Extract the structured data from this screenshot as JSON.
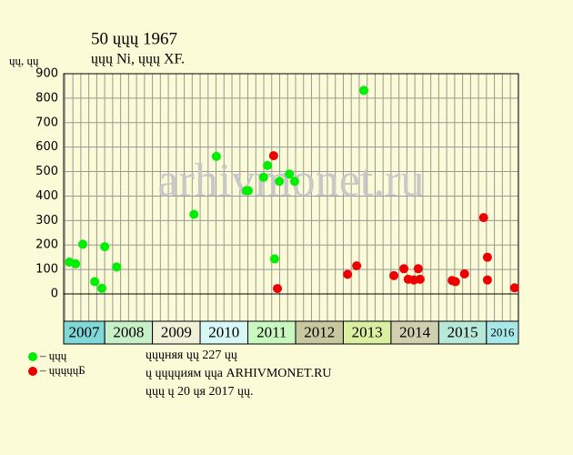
{
  "chart_data": {
    "type": "scatter",
    "title": "50 ųųų 1967",
    "subtitle": "ųųų Ni, ųųų XF.",
    "y_label": "ųų, ųų",
    "watermark": "arhivmonet.ru",
    "xlim": [
      2007.14,
      2016.67
    ],
    "xticks": [
      2007,
      2008,
      2009,
      2010,
      2011,
      2012,
      2013,
      2014,
      2015,
      2016
    ],
    "band_colors": [
      "#80d8d8",
      "#c8f0c8",
      "#f0f0d8",
      "#d8f8f8",
      "#c8f8c0",
      "#c8c8a0",
      "#d8f0a0",
      "#d0d0b0",
      "#b8e8d8",
      "#a8e8e8"
    ],
    "ylim": [
      0,
      900
    ],
    "yticks": [
      0,
      100,
      200,
      300,
      400,
      500,
      600,
      700,
      800,
      900
    ],
    "grid": true,
    "series": [
      {
        "name": "– ųųų",
        "color": "#00ee00",
        "x": [
          2007.26,
          2007.39,
          2007.54,
          2007.79,
          2007.94,
          2008.0,
          2008.25,
          2009.87,
          2010.34,
          2010.97,
          2011.01,
          2011.33,
          2011.41,
          2011.56,
          2011.66,
          2011.87,
          2011.98,
          2013.43
        ],
        "values": [
          130,
          123,
          203,
          50,
          23,
          193,
          110,
          325,
          562,
          422,
          422,
          477,
          525,
          143,
          460,
          490,
          460,
          832
        ]
      },
      {
        "name": "– ųųųųųБ",
        "color": "#ee0000",
        "x": [
          2011.54,
          2011.62,
          2013.09,
          2013.28,
          2014.06,
          2014.27,
          2014.36,
          2014.48,
          2014.57,
          2014.61,
          2015.28,
          2015.35,
          2015.54,
          2015.94,
          2016.02,
          2016.02,
          2016.59
        ],
        "values": [
          565,
          22,
          80,
          115,
          75,
          103,
          60,
          57,
          103,
          60,
          55,
          50,
          82,
          312,
          150,
          57,
          25
        ]
      }
    ],
    "notes": [
      "ųųųняя ųų 227 ųų",
      "ų ųųųųиям ųųа ARHIVMONET.RU",
      "ųųų ų 20 ųя 2017 ųų."
    ]
  }
}
